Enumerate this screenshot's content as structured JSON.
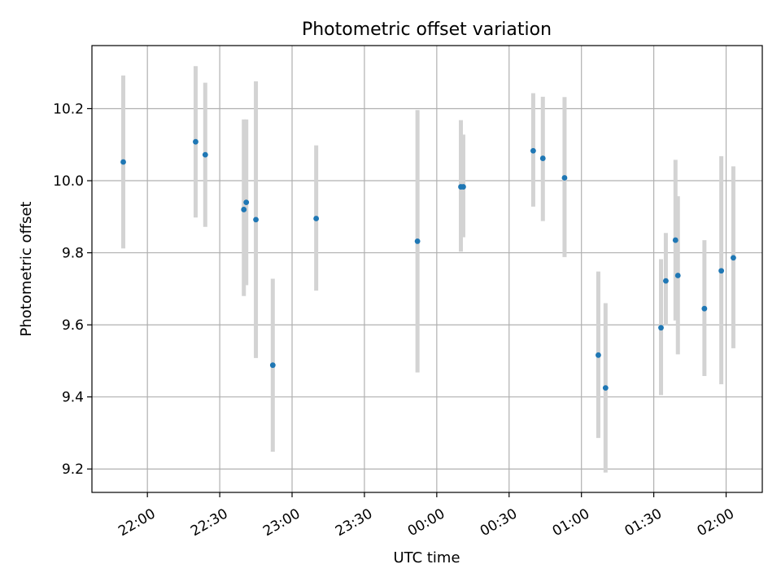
{
  "chart_data": {
    "type": "scatter",
    "title": "Photometric offset variation",
    "xlabel": "UTC time",
    "ylabel": "Photometric offset",
    "x_axis_type": "time",
    "x_reference_date": "",
    "xlim": [
      "21:37",
      "02:15"
    ],
    "ylim": [
      9.135,
      10.375
    ],
    "xticks": [
      {
        "t": "22:00",
        "label": "22:00"
      },
      {
        "t": "22:30",
        "label": "22:30"
      },
      {
        "t": "23:00",
        "label": "23:00"
      },
      {
        "t": "23:30",
        "label": "23:30"
      },
      {
        "t": "00:00",
        "label": "00:00"
      },
      {
        "t": "00:30",
        "label": "00:30"
      },
      {
        "t": "01:00",
        "label": "01:00"
      },
      {
        "t": "01:30",
        "label": "01:30"
      },
      {
        "t": "02:00",
        "label": "02:00"
      }
    ],
    "yticks": [
      {
        "v": 9.2,
        "label": "9.2"
      },
      {
        "v": 9.4,
        "label": "9.4"
      },
      {
        "v": 9.6,
        "label": "9.6"
      },
      {
        "v": 9.8,
        "label": "9.8"
      },
      {
        "v": 10.0,
        "label": "10.0"
      },
      {
        "v": 10.2,
        "label": "10.2"
      }
    ],
    "grid": true,
    "point_color": "#1f77b4",
    "errorbar_color": "#d3d3d3",
    "points": [
      {
        "t": "21:50",
        "y": 10.052,
        "low": 9.812,
        "high": 10.292
      },
      {
        "t": "22:20",
        "y": 10.108,
        "low": 9.898,
        "high": 10.318
      },
      {
        "t": "22:24",
        "y": 10.072,
        "low": 9.872,
        "high": 10.272
      },
      {
        "t": "22:40",
        "y": 9.92,
        "low": 9.68,
        "high": 10.17
      },
      {
        "t": "22:41",
        "y": 9.94,
        "low": 9.71,
        "high": 10.17
      },
      {
        "t": "22:45",
        "y": 9.892,
        "low": 9.508,
        "high": 10.276
      },
      {
        "t": "22:52",
        "y": 9.488,
        "low": 9.248,
        "high": 9.728
      },
      {
        "t": "23:10",
        "y": 9.895,
        "low": 9.695,
        "high": 10.098
      },
      {
        "t": "23:52",
        "y": 9.832,
        "low": 9.468,
        "high": 10.196
      },
      {
        "t": "00:10",
        "y": 9.983,
        "low": 9.803,
        "high": 10.168
      },
      {
        "t": "00:11",
        "y": 9.983,
        "low": 9.843,
        "high": 10.128
      },
      {
        "t": "00:40",
        "y": 10.083,
        "low": 9.928,
        "high": 10.243
      },
      {
        "t": "00:44",
        "y": 10.062,
        "low": 9.888,
        "high": 10.233
      },
      {
        "t": "00:53",
        "y": 10.008,
        "low": 9.788,
        "high": 10.232
      },
      {
        "t": "01:07",
        "y": 9.516,
        "low": 9.286,
        "high": 9.748
      },
      {
        "t": "01:10",
        "y": 9.425,
        "low": 9.19,
        "high": 9.66
      },
      {
        "t": "01:33",
        "y": 9.592,
        "low": 9.405,
        "high": 9.782
      },
      {
        "t": "01:35",
        "y": 9.722,
        "low": 9.598,
        "high": 9.855
      },
      {
        "t": "01:39",
        "y": 9.835,
        "low": 9.612,
        "high": 10.058
      },
      {
        "t": "01:40",
        "y": 9.737,
        "low": 9.518,
        "high": 9.957
      },
      {
        "t": "01:51",
        "y": 9.645,
        "low": 9.458,
        "high": 9.835
      },
      {
        "t": "01:58",
        "y": 9.75,
        "low": 9.435,
        "high": 10.068
      },
      {
        "t": "02:03",
        "y": 9.786,
        "low": 9.535,
        "high": 10.04
      }
    ]
  }
}
